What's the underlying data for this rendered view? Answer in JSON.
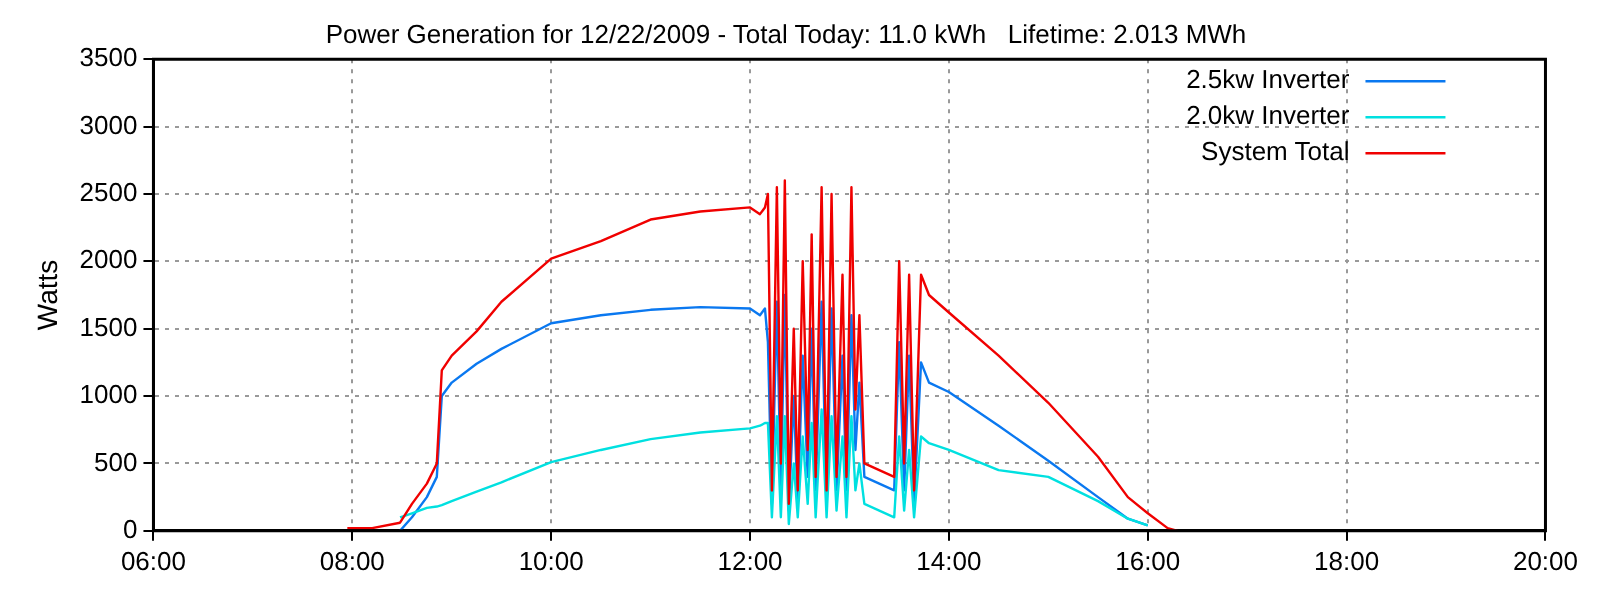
{
  "chart_data": {
    "type": "line",
    "title": "Power Generation for 12/22/2009 - Total Today: 11.0 kWh   Lifetime: 2.013 MWh",
    "ylabel": "Watts",
    "x": [
      7.95,
      8.2,
      8.48,
      8.6,
      8.75,
      8.85,
      8.9,
      9.0,
      9.25,
      9.5,
      10.0,
      10.5,
      11.0,
      11.5,
      12.0,
      12.1,
      12.15,
      12.18,
      12.22,
      12.27,
      12.31,
      12.35,
      12.39,
      12.44,
      12.48,
      12.53,
      12.58,
      12.62,
      12.66,
      12.72,
      12.77,
      12.82,
      12.87,
      12.93,
      12.97,
      13.02,
      13.06,
      13.1,
      13.15,
      13.3,
      13.45,
      13.5,
      13.55,
      13.6,
      13.65,
      13.72,
      13.8,
      14.0,
      14.5,
      15.0,
      15.5,
      15.8,
      16.0,
      16.2,
      16.3
    ],
    "series": [
      {
        "name": "2.5kw Inverter",
        "color": "#0a78f0",
        "values": [
          null,
          null,
          0,
          100,
          250,
          400,
          1000,
          1100,
          1240,
          1350,
          1540,
          1600,
          1640,
          1660,
          1650,
          1600,
          1650,
          1400,
          200,
          1700,
          300,
          1750,
          150,
          1000,
          200,
          1300,
          400,
          1500,
          300,
          1700,
          200,
          1650,
          300,
          1300,
          300,
          1600,
          600,
          1100,
          400,
          350,
          300,
          1400,
          300,
          1300,
          200,
          1250,
          1100,
          1030,
          780,
          520,
          250,
          90,
          40,
          null,
          null
        ]
      },
      {
        "name": "2.0kw Inverter",
        "color": "#00e0e0",
        "values": [
          null,
          null,
          100,
          130,
          170,
          180,
          190,
          220,
          290,
          360,
          510,
          600,
          680,
          730,
          760,
          780,
          800,
          800,
          100,
          850,
          100,
          850,
          50,
          500,
          100,
          700,
          200,
          800,
          100,
          900,
          100,
          850,
          150,
          700,
          100,
          850,
          300,
          500,
          200,
          150,
          100,
          700,
          150,
          600,
          100,
          700,
          650,
          600,
          450,
          400,
          220,
          90,
          40,
          null,
          null
        ]
      },
      {
        "name": "System Total",
        "color": "#f00000",
        "values": [
          20,
          20,
          60,
          200,
          350,
          500,
          1190,
          1300,
          1480,
          1700,
          2020,
          2150,
          2310,
          2370,
          2400,
          2350,
          2400,
          2500,
          300,
          2550,
          500,
          2600,
          200,
          1500,
          300,
          2000,
          600,
          2200,
          400,
          2550,
          300,
          2500,
          400,
          1900,
          400,
          2550,
          900,
          1600,
          500,
          450,
          400,
          2000,
          500,
          1900,
          300,
          1900,
          1750,
          1620,
          1300,
          950,
          550,
          250,
          130,
          20,
          0
        ]
      }
    ],
    "xlim": [
      6,
      20
    ],
    "xticks": [
      {
        "value": 6,
        "label": "06:00"
      },
      {
        "value": 8,
        "label": "08:00"
      },
      {
        "value": 10,
        "label": "10:00"
      },
      {
        "value": 12,
        "label": "12:00"
      },
      {
        "value": 14,
        "label": "14:00"
      },
      {
        "value": 16,
        "label": "16:00"
      },
      {
        "value": 18,
        "label": "18:00"
      },
      {
        "value": 20,
        "label": "20:00"
      }
    ],
    "ylim": [
      0,
      3500
    ],
    "yticks": [
      0,
      500,
      1000,
      1500,
      2000,
      2500,
      3000,
      3500
    ],
    "grid": true,
    "legend": "top right",
    "marker": "none",
    "line_style": "solid"
  }
}
